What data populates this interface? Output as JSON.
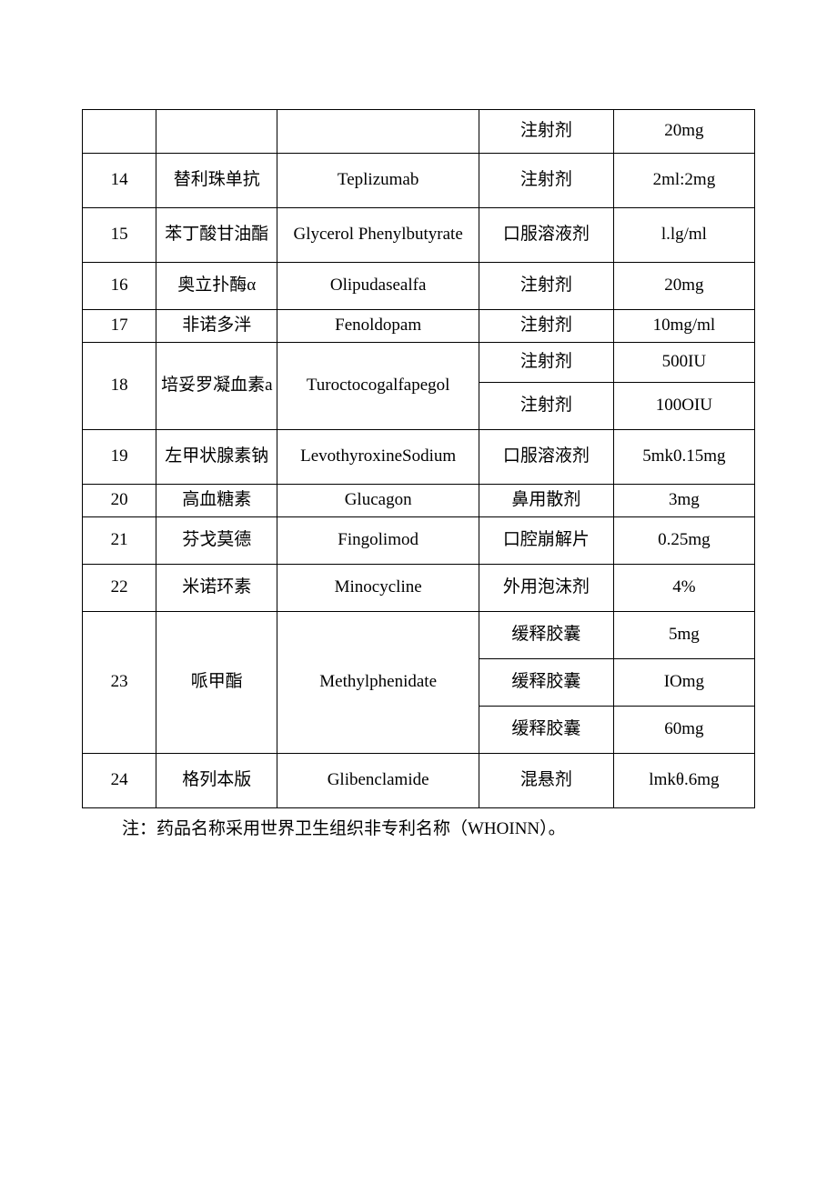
{
  "table": {
    "columns": [
      "col-num",
      "col-cn",
      "col-en",
      "col-form",
      "col-spec"
    ],
    "border_color": "#000000",
    "font_size": 19,
    "text_color": "#000000",
    "background_color": "#ffffff",
    "cells": {
      "r0_form": "注射剂",
      "r0_spec": "20mg",
      "r14_num": "14",
      "r14_cn": "替利珠单抗",
      "r14_en": "Teplizumab",
      "r14_form": "注射剂",
      "r14_spec": "2ml:2mg",
      "r15_num": "15",
      "r15_cn": "苯丁酸甘油酯",
      "r15_en": "Glycerol Phenylbutyrate",
      "r15_form": "口服溶液剂",
      "r15_spec": "l.lg/ml",
      "r16_num": "16",
      "r16_cn": "奥立扑酶α",
      "r16_en": "Olipudasealfa",
      "r16_form": "注射剂",
      "r16_spec": "20mg",
      "r17_num": "17",
      "r17_cn": "非诺多泮",
      "r17_en": "Fenoldopam",
      "r17_form": "注射剂",
      "r17_spec": "10mg/ml",
      "r18_num": "18",
      "r18_cn": "培妥罗凝血素a",
      "r18_en": "Turoctocogalfapegol",
      "r18_form1": "注射剂",
      "r18_spec1": "500IU",
      "r18_form2": "注射剂",
      "r18_spec2": "100OIU",
      "r19_num": "19",
      "r19_cn": "左甲状腺素钠",
      "r19_en": "LevothyroxineSodium",
      "r19_form": "口服溶液剂",
      "r19_spec": "5mk0.15mg",
      "r20_num": "20",
      "r20_cn": "高血糖素",
      "r20_en": "Glucagon",
      "r20_form": "鼻用散剂",
      "r20_spec": "3mg",
      "r21_num": "21",
      "r21_cn": "芬戈莫德",
      "r21_en": "Fingolimod",
      "r21_form": "口腔崩解片",
      "r21_spec": "0.25mg",
      "r22_num": "22",
      "r22_cn": "米诺环素",
      "r22_en": "Minocycline",
      "r22_form": "外用泡沫剂",
      "r22_spec": "4%",
      "r23_num": "23",
      "r23_cn": "哌甲酯",
      "r23_en": "Methylphenidate",
      "r23_form1": "缓释胶囊",
      "r23_spec1": "5mg",
      "r23_form2": "缓释胶囊",
      "r23_spec2": "IOmg",
      "r23_form3": "缓释胶囊",
      "r23_spec3": "60mg",
      "r24_num": "24",
      "r24_cn": "格列本版",
      "r24_en": "Glibenclamide",
      "r24_form": "混悬剂",
      "r24_spec": "lmkθ.6mg"
    }
  },
  "note": "注：药品名称采用世界卫生组织非专利名称（WHOINN）。"
}
